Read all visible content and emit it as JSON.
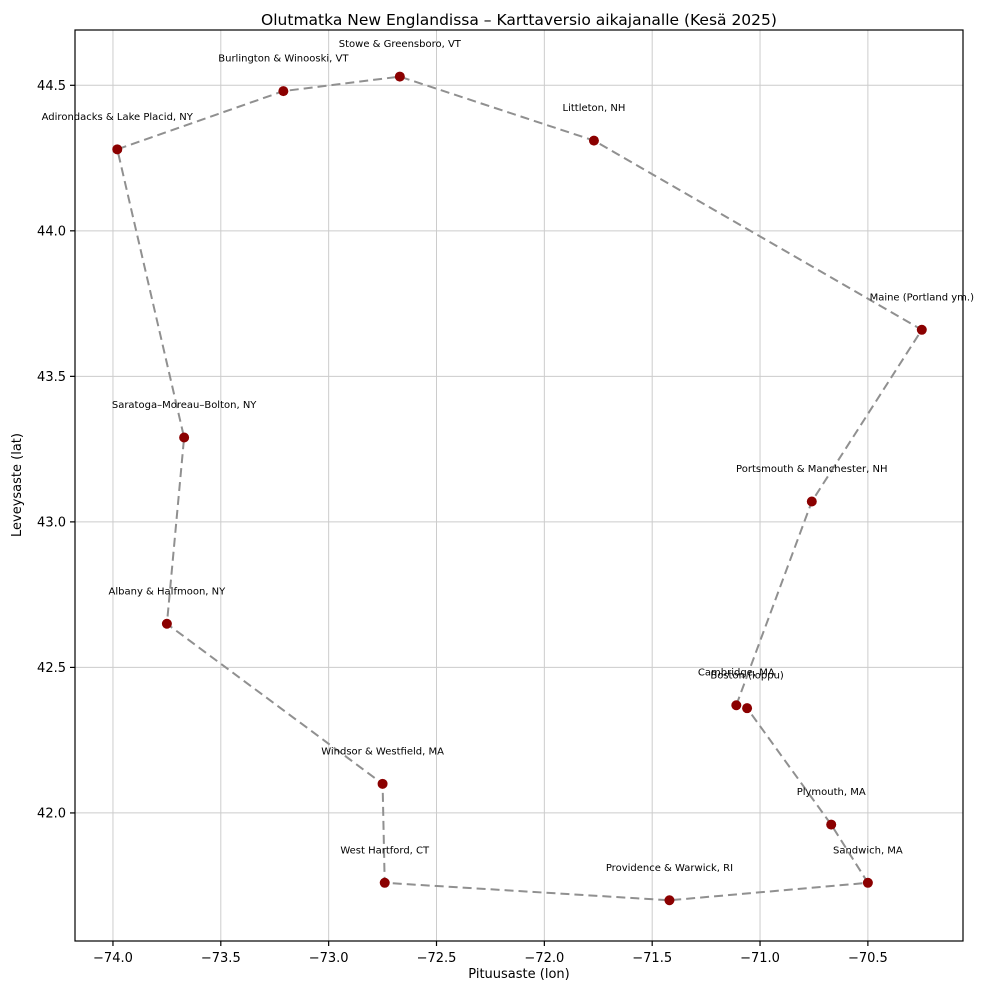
{
  "title": "Olutmatka New Englandissa – Karttaversio aikajanalle (Kesä 2025)",
  "chart_data": {
    "type": "scatter",
    "title": "Olutmatka New Englandissa – Karttaversio aikajanalle (Kesä 2025)",
    "xlabel": "Pituusaste (lon)",
    "ylabel": "Leveysaste (lat)",
    "xlim": [
      -74.176,
      -70.059
    ],
    "ylim": [
      41.56,
      44.69
    ],
    "xticks": [
      -74.0,
      -73.5,
      -73.0,
      -72.5,
      -72.0,
      -71.5,
      -71.0,
      -70.5
    ],
    "yticks": [
      42.0,
      42.5,
      43.0,
      43.5,
      44.0,
      44.5
    ],
    "grid": true,
    "legend": "none",
    "line_style": "dashed",
    "marker_color": "#8b0000",
    "line_color": "#909090",
    "grid_color": "#cccccc",
    "points": [
      {
        "label": "Cambridge, MA",
        "lon": -71.11,
        "lat": 42.37
      },
      {
        "label": "Portsmouth & Manchester, NH",
        "lon": -70.76,
        "lat": 43.07
      },
      {
        "label": "Maine (Portland ym.)",
        "lon": -70.25,
        "lat": 43.66
      },
      {
        "label": "Littleton, NH",
        "lon": -71.77,
        "lat": 44.31
      },
      {
        "label": "Stowe & Greensboro, VT",
        "lon": -72.67,
        "lat": 44.53
      },
      {
        "label": "Burlington & Winooski, VT",
        "lon": -73.21,
        "lat": 44.48
      },
      {
        "label": "Adirondacks & Lake Placid, NY",
        "lon": -73.98,
        "lat": 44.28
      },
      {
        "label": "Saratoga–Moreau–Bolton, NY",
        "lon": -73.67,
        "lat": 43.29
      },
      {
        "label": "Albany & Halfmoon, NY",
        "lon": -73.75,
        "lat": 42.65
      },
      {
        "label": "Windsor & Westfield, MA",
        "lon": -72.75,
        "lat": 42.1
      },
      {
        "label": "West Hartford, CT",
        "lon": -72.74,
        "lat": 41.76
      },
      {
        "label": "Providence & Warwick, RI",
        "lon": -71.42,
        "lat": 41.7
      },
      {
        "label": "Sandwich, MA",
        "lon": -70.5,
        "lat": 41.76
      },
      {
        "label": "Plymouth, MA",
        "lon": -70.67,
        "lat": 41.96
      },
      {
        "label": "Boston (loppu)",
        "lon": -71.06,
        "lat": 42.36
      }
    ]
  }
}
